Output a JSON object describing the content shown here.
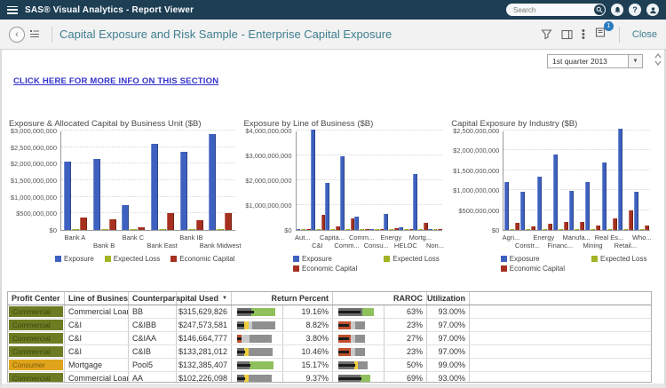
{
  "app_bar": {
    "title": "SAS® Visual Analytics - Report Viewer",
    "search_placeholder": "Search",
    "help_glyph": "?"
  },
  "toolbar": {
    "report_title": "Capital Exposure and Risk Sample - Enterprise Capital Exposure",
    "comment_badge": "1",
    "close_label": "Close"
  },
  "controls": {
    "period_value": "1st quarter 2013"
  },
  "info_link_label": "CLICK HERE FOR MORE INFO ON THIS SECTION",
  "chart_data": [
    {
      "type": "bar",
      "title": "Exposure & Allocated Capital by Business Unit ($B)",
      "categories": [
        "Bank A",
        "Bank B",
        "Bank C",
        "Bank East",
        "Bank IB",
        "Bank Midwest"
      ],
      "series": [
        {
          "name": "Exposure",
          "color": "#3e61c0",
          "values": [
            2050000000,
            2150000000,
            750000000,
            2600000000,
            2350000000,
            2900000000
          ]
        },
        {
          "name": "Expected Loss",
          "color": "#a3b324",
          "values": [
            20000000,
            20000000,
            10000000,
            25000000,
            20000000,
            25000000
          ]
        },
        {
          "name": "Economic Capital",
          "color": "#a5301f",
          "values": [
            370000000,
            330000000,
            70000000,
            520000000,
            300000000,
            500000000
          ]
        }
      ],
      "ylim": [
        0,
        3000000000
      ],
      "ytick_step": 500000000,
      "legend_rows": 1
    },
    {
      "type": "bar",
      "title": "Exposure by Line of Business ($B)",
      "categories": [
        "Aut...",
        "C&I",
        "Capita...",
        "Comm...",
        "Comm...",
        "Consu...",
        "Energy",
        "HELOC",
        "Mortg...",
        "Non..."
      ],
      "series": [
        {
          "name": "Exposure",
          "color": "#3e61c0",
          "values": [
            30000000,
            4050000000,
            1900000000,
            2950000000,
            550000000,
            50000000,
            650000000,
            100000000,
            2250000000,
            30000000
          ]
        },
        {
          "name": "Expected Loss",
          "color": "#a3b324",
          "values": [
            5000000,
            30000000,
            15000000,
            25000000,
            8000000,
            4000000,
            8000000,
            5000000,
            20000000,
            3000000
          ]
        },
        {
          "name": "Economic Capital",
          "color": "#a5301f",
          "values": [
            20000000,
            620000000,
            160000000,
            460000000,
            40000000,
            20000000,
            60000000,
            30000000,
            300000000,
            15000000
          ]
        }
      ],
      "ylim": [
        0,
        4000000000
      ],
      "ytick_step": 1000000000,
      "legend_rows": 2
    },
    {
      "type": "bar",
      "title": "Capital Exposure by Industry ($B)",
      "categories": [
        "Agri...",
        "Constr...",
        "Energy",
        "Financ...",
        "Manufa...",
        "Mining",
        "Real Es...",
        "Retail...",
        "Who..."
      ],
      "series": [
        {
          "name": "Exposure",
          "color": "#3e61c0",
          "values": [
            1200000000,
            950000000,
            1350000000,
            1900000000,
            980000000,
            1200000000,
            1700000000,
            2550000000,
            970000000
          ]
        },
        {
          "name": "Expected Loss",
          "color": "#a3b324",
          "values": [
            12000000,
            10000000,
            12000000,
            15000000,
            10000000,
            10000000,
            15000000,
            30000000,
            10000000
          ]
        },
        {
          "name": "Economic Capital",
          "color": "#a5301f",
          "values": [
            170000000,
            100000000,
            150000000,
            200000000,
            210000000,
            120000000,
            300000000,
            500000000,
            120000000
          ]
        }
      ],
      "ylim": [
        0,
        2500000000
      ],
      "ytick_step": 500000000,
      "legend_rows": 2
    }
  ],
  "table": {
    "columns": [
      "Profit Center",
      "Line of Business",
      "Counterparty",
      "Capital Used",
      "Return Percent",
      "RAROC",
      "Utilization"
    ],
    "sort_icon": "▼",
    "profit_center_colors": {
      "Commercial": {
        "bg": "#6d7c22",
        "text": "#3c470f"
      },
      "Consumer": {
        "bg": "#e0a41c",
        "text": "#7c5a07"
      }
    },
    "rows": [
      {
        "profit_center": "Commercial",
        "line_of_business": "Commercial Loan",
        "counterparty": "BB",
        "capital_used": "$315,629,826",
        "return_percent": "19.16%",
        "raroc": "63%",
        "utilization": "93.00%",
        "return_bullet": {
          "segments": [
            [
              "#6e6e6e",
              0.36
            ],
            [
              "#8fc05c",
              0.6
            ]
          ],
          "measure": 0.42
        },
        "raroc_bullet": {
          "segments": [
            [
              "#6e6e6e",
              0.6
            ],
            [
              "#8fc05c",
              0.28
            ]
          ],
          "measure": 0.55
        }
      },
      {
        "profit_center": "Commercial",
        "line_of_business": "C&I",
        "counterparty": "C&IBB",
        "capital_used": "$247,573,581",
        "return_percent": "8.82%",
        "raroc": "23%",
        "utilization": "97.00%",
        "return_bullet": {
          "segments": [
            [
              "#6e6e6e",
              0.17
            ],
            [
              "#f2ce3c",
              0.12
            ],
            [
              "#c9c9c9",
              0.08
            ],
            [
              "#8f8f8f",
              0.58
            ]
          ],
          "measure": 0.18
        },
        "raroc_bullet": {
          "segments": [
            [
              "#c0502f",
              0.3
            ],
            [
              "#c9c9c9",
              0.12
            ],
            [
              "#8f8f8f",
              0.25
            ]
          ],
          "measure": 0.27
        }
      },
      {
        "profit_center": "Commercial",
        "line_of_business": "C&I",
        "counterparty": "C&IAA",
        "capital_used": "$146,664,777",
        "return_percent": "3.80%",
        "raroc": "27%",
        "utilization": "97.00%",
        "return_bullet": {
          "segments": [
            [
              "#c0502f",
              0.12
            ],
            [
              "#c9c9c9",
              0.2
            ],
            [
              "#8f8f8f",
              0.55
            ]
          ],
          "measure": 0.1
        },
        "raroc_bullet": {
          "segments": [
            [
              "#c0502f",
              0.3
            ],
            [
              "#c9c9c9",
              0.12
            ],
            [
              "#8f8f8f",
              0.25
            ]
          ],
          "measure": 0.27
        }
      },
      {
        "profit_center": "Commercial",
        "line_of_business": "C&I",
        "counterparty": "C&IB",
        "capital_used": "$133,281,012",
        "return_percent": "10.46%",
        "raroc": "23%",
        "utilization": "97.00%",
        "return_bullet": {
          "segments": [
            [
              "#6e6e6e",
              0.17
            ],
            [
              "#f2ce3c",
              0.12
            ],
            [
              "#8f8f8f",
              0.6
            ]
          ],
          "measure": 0.2
        },
        "raroc_bullet": {
          "segments": [
            [
              "#c0502f",
              0.3
            ],
            [
              "#c9c9c9",
              0.12
            ],
            [
              "#8f8f8f",
              0.25
            ]
          ],
          "measure": 0.27
        }
      },
      {
        "profit_center": "Consumer",
        "line_of_business": "Mortgage",
        "counterparty": "Pool5",
        "capital_used": "$132,385,407",
        "return_percent": "15.17%",
        "raroc": "50%",
        "utilization": "99.00%",
        "return_bullet": {
          "segments": [
            [
              "#6e6e6e",
              0.3
            ],
            [
              "#8fc05c",
              0.62
            ]
          ],
          "measure": 0.33
        },
        "raroc_bullet": {
          "segments": [
            [
              "#6e6e6e",
              0.4
            ],
            [
              "#f2ce3c",
              0.08
            ],
            [
              "#8f8f8f",
              0.25
            ]
          ],
          "measure": 0.42
        }
      },
      {
        "profit_center": "Commercial",
        "line_of_business": "Commercial Loan",
        "counterparty": "AA",
        "capital_used": "$102,226,098",
        "return_percent": "9.37%",
        "raroc": "69%",
        "utilization": "93.00%",
        "return_bullet": {
          "segments": [
            [
              "#6e6e6e",
              0.17
            ],
            [
              "#f2ce3c",
              0.12
            ],
            [
              "#8f8f8f",
              0.58
            ]
          ],
          "measure": 0.19
        },
        "raroc_bullet": {
          "segments": [
            [
              "#6e6e6e",
              0.55
            ],
            [
              "#8fc05c",
              0.25
            ]
          ],
          "measure": 0.58
        }
      }
    ]
  }
}
